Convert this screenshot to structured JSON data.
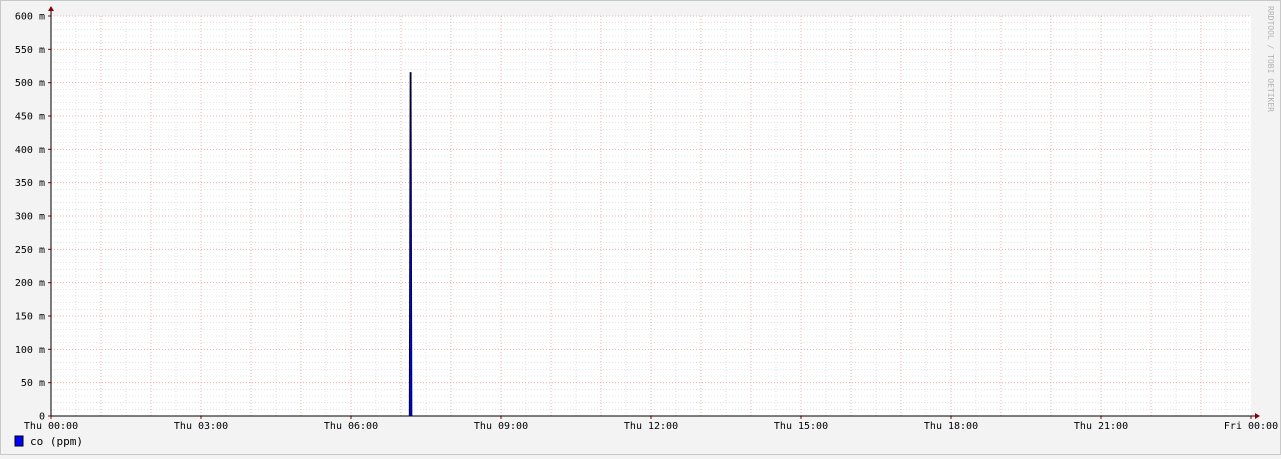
{
  "chart_data": {
    "type": "line",
    "x": [
      "Thu 07:10",
      "Thu 07:11",
      "Thu 07:12",
      "Thu 07:13"
    ],
    "series": [
      {
        "name": "co (ppm)",
        "values": [
          0,
          0.515,
          0.515,
          0
        ]
      }
    ],
    "x_range": [
      "Thu 00:00",
      "Fri 00:00"
    ],
    "xticks": [
      "Thu 00:00",
      "Thu 03:00",
      "Thu 06:00",
      "Thu 09:00",
      "Thu 12:00",
      "Thu 15:00",
      "Thu 18:00",
      "Thu 21:00",
      "Fri 00:00"
    ],
    "yticks": [
      "0",
      "50 m",
      "100 m",
      "150 m",
      "200 m",
      "250 m",
      "300 m",
      "350 m",
      "400 m",
      "450 m",
      "500 m",
      "550 m",
      "600 m"
    ],
    "ylim": [
      0,
      0.6
    ],
    "title": "",
    "xlabel": "",
    "ylabel": "",
    "grid": true,
    "legend": {
      "position": "bottom-left",
      "entries": [
        "co (ppm)"
      ]
    },
    "colors": {
      "series_fill": "#0000ff",
      "series_line": "#000033",
      "major_grid": "#e9a0a0",
      "minor_grid": "#d0d0d0",
      "axis": "#8b0000",
      "plot_bg": "#ffffff",
      "canvas_bg": "#f3f3f3"
    }
  },
  "watermark": "RRDTOOL / TOBI OETIKER"
}
